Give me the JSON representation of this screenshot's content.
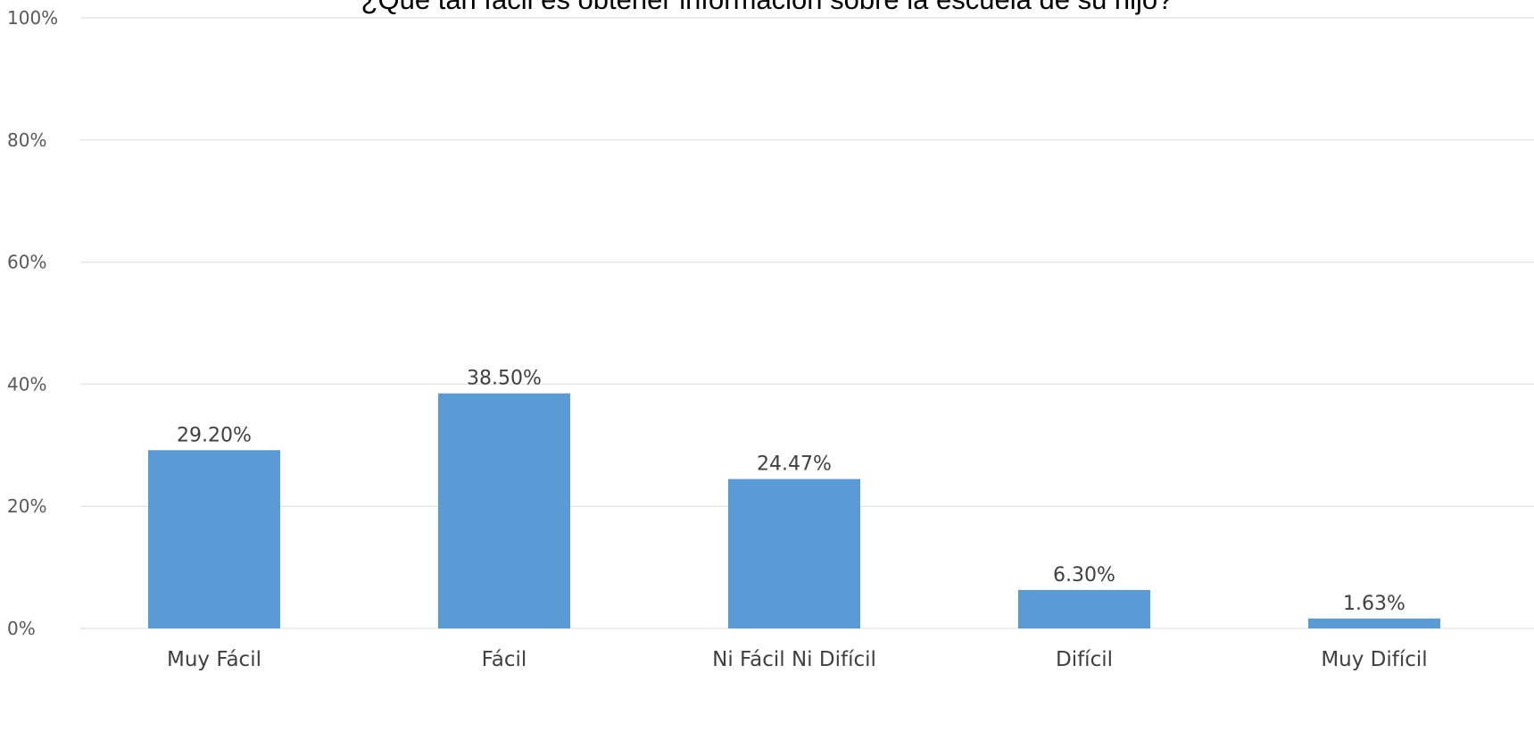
{
  "chart_data": {
    "type": "bar",
    "title": "¿Qué tan fácil es obtener información sobre la escuela de su hijo?",
    "xlabel": "",
    "ylabel": "",
    "categories": [
      "Muy Fácil",
      "Fácil",
      "Ni Fácil Ni Difícil",
      "Difícil",
      "Muy Difícil"
    ],
    "values": [
      29.2,
      38.5,
      24.47,
      6.3,
      1.63
    ],
    "data_labels": [
      "29.20%",
      "38.50%",
      "24.47%",
      "6.30%",
      "1.63%"
    ],
    "ylim": [
      0,
      100
    ],
    "yticks": [
      0,
      20,
      40,
      60,
      80,
      100
    ],
    "ytick_labels": [
      "0%",
      "20%",
      "40%",
      "60%",
      "80%",
      "100%"
    ],
    "grid": true,
    "legend": "none",
    "colors": {
      "bar": "#5b9bd5",
      "grid": "#e6e6e6"
    }
  }
}
